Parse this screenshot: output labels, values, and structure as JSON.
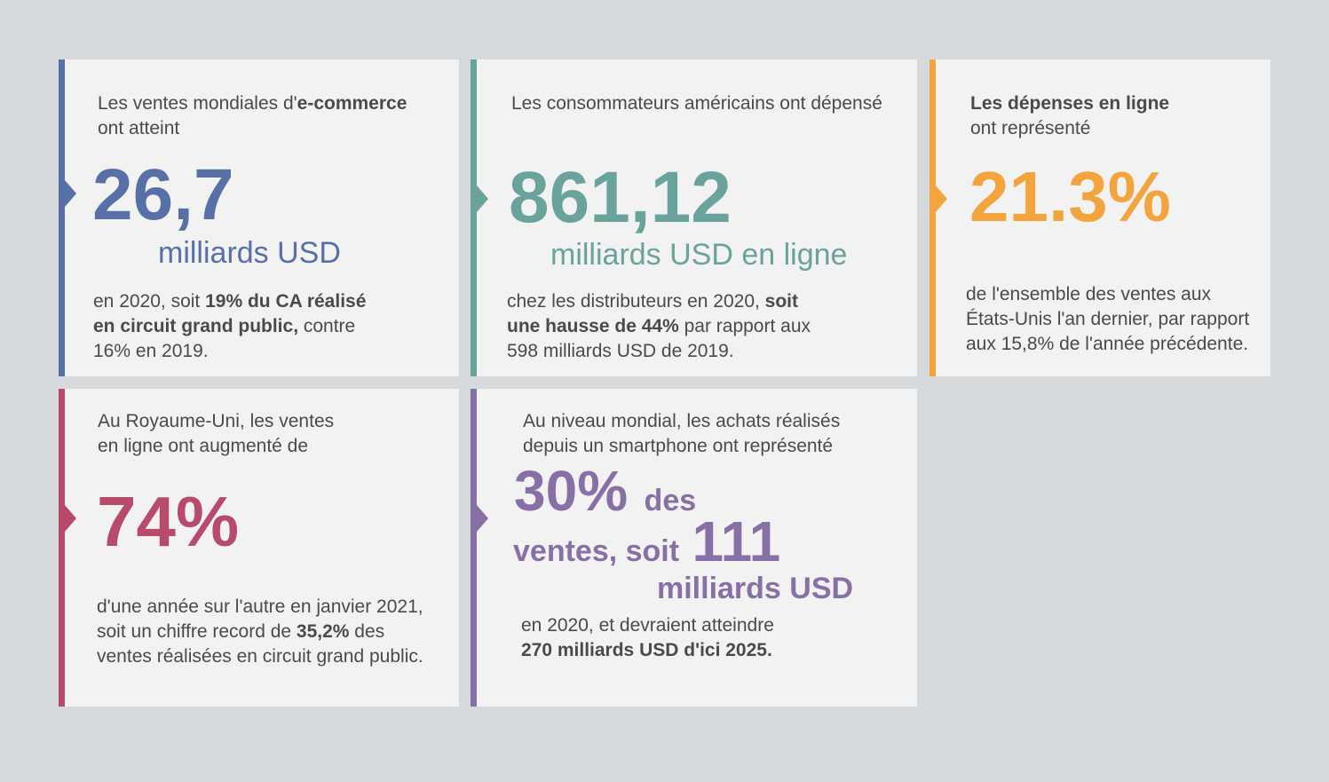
{
  "colors": {
    "background": "#d6dadd",
    "card": "#f2f2f2",
    "blue": "#5870a8",
    "teal": "#6aa39c",
    "orange": "#f3a43c",
    "crimson": "#b84a6c",
    "purple": "#8770a5"
  },
  "card1": {
    "intro_a": "Les ventes mondiales d'",
    "intro_b": "e-commerce",
    "intro_c": "ont atteint",
    "big": "26,7",
    "unit": "milliards USD",
    "body_1a": "en 2020, soit ",
    "body_1b": "19% du CA réalisé",
    "body_2a": "en circuit grand public,",
    "body_2b": " contre",
    "body_3": "16% en 2019."
  },
  "card2": {
    "intro": "Les consommateurs américains ont dépensé",
    "big": "861,12",
    "unit": "milliards USD en ligne",
    "body_1a": "chez les distributeurs en 2020, ",
    "body_1b": "soit",
    "body_2a": "une hausse de 44%",
    "body_2b": " par rapport aux",
    "body_3": "598 milliards USD de 2019."
  },
  "card3": {
    "intro_a": "Les dépenses en ligne",
    "intro_b": "ont représenté",
    "big": "21.3%",
    "body_1": "de l'ensemble des ventes aux",
    "body_2": "États-Unis l'an dernier, par rapport",
    "body_3": "aux 15,8% de l'année précédente."
  },
  "card4": {
    "intro_1": "Au Royaume-Uni, les ventes",
    "intro_2": "en ligne ont augmenté de",
    "big": "74%",
    "body_1": "d'une année sur l'autre en janvier 2021,",
    "body_2a": "soit un chiffre record de ",
    "body_2b": "35,2%",
    "body_2c": " des",
    "body_3": "ventes réalisées en circuit grand public."
  },
  "card5": {
    "intro_1": "Au niveau mondial, les achats réalisés",
    "intro_2": "depuis un smartphone ont représenté",
    "big_a": "30%",
    "text_a": "des",
    "text_b": "ventes, soit",
    "big_b": "111",
    "unit": "milliards USD",
    "body_1": "en 2020, et devraient atteindre",
    "body_2": "270 milliards USD d'ici 2025."
  }
}
